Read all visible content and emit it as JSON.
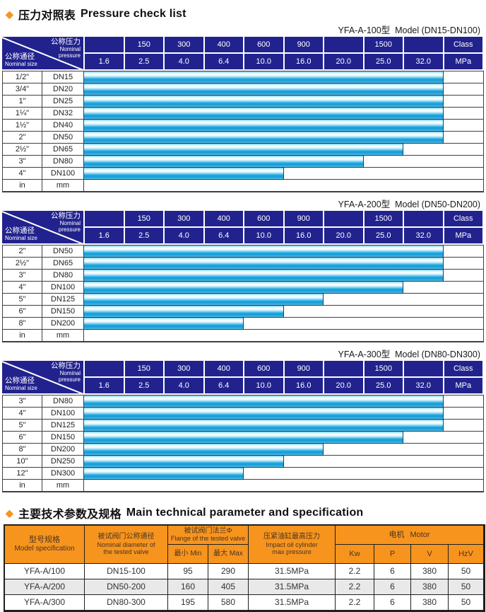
{
  "page": {
    "diamond_icon": "◆",
    "section1_title_zh": "压力对照表",
    "section1_title_en": "Pressure check list",
    "section2_title_zh": "主要技术参数及规格",
    "section2_title_en": "Main technical parameter and specification",
    "colors": {
      "header_navy": "#22228E",
      "accent_orange": "#F7941D",
      "bar_cyan": "#29ABE2"
    }
  },
  "pressure_header": {
    "diagonal": {
      "top_zh": "公称压力",
      "top_en1": "Nominal",
      "top_en2": "pressure",
      "bottom_zh": "公称通径",
      "bottom_en": "Nominal size"
    },
    "class_row": [
      "",
      "150",
      "300",
      "400",
      "600",
      "900",
      "",
      "1500",
      "",
      "Class"
    ],
    "mpa_row": [
      "1.6",
      "2.5",
      "4.0",
      "6.4",
      "10.0",
      "16.0",
      "20.0",
      "25.0",
      "32.0",
      "MPa"
    ],
    "footer": [
      "in",
      "mm"
    ]
  },
  "pressure_tables": [
    {
      "title": "YFA-A-100型  Model (DN15-DN100)",
      "rows": [
        {
          "inch": "1/2\"",
          "dn": "DN15",
          "max_mpa": "32.0"
        },
        {
          "inch": "3/4\"",
          "dn": "DN20",
          "max_mpa": "32.0"
        },
        {
          "inch": "1\"",
          "dn": "DN25",
          "max_mpa": "32.0"
        },
        {
          "inch": "1¼\"",
          "dn": "DN32",
          "max_mpa": "32.0"
        },
        {
          "inch": "1½\"",
          "dn": "DN40",
          "max_mpa": "32.0"
        },
        {
          "inch": "2\"",
          "dn": "DN50",
          "max_mpa": "32.0"
        },
        {
          "inch": "2½\"",
          "dn": "DN65",
          "max_mpa": "25.0"
        },
        {
          "inch": "3\"",
          "dn": "DN80",
          "max_mpa": "20.0"
        },
        {
          "inch": "4\"",
          "dn": "DN100",
          "max_mpa": "10.0"
        }
      ]
    },
    {
      "title": "YFA-A-200型  Model (DN50-DN200)",
      "rows": [
        {
          "inch": "2\"",
          "dn": "DN50",
          "max_mpa": "32.0"
        },
        {
          "inch": "2½\"",
          "dn": "DN65",
          "max_mpa": "32.0"
        },
        {
          "inch": "3\"",
          "dn": "DN80",
          "max_mpa": "32.0"
        },
        {
          "inch": "4\"",
          "dn": "DN100",
          "max_mpa": "25.0"
        },
        {
          "inch": "5\"",
          "dn": "DN125",
          "max_mpa": "16.0"
        },
        {
          "inch": "6\"",
          "dn": "DN150",
          "max_mpa": "10.0"
        },
        {
          "inch": "8\"",
          "dn": "DN200",
          "max_mpa": "6.4"
        }
      ]
    },
    {
      "title": "YFA-A-300型  Model (DN80-DN300)",
      "rows": [
        {
          "inch": "3\"",
          "dn": "DN80",
          "max_mpa": "32.0"
        },
        {
          "inch": "4\"",
          "dn": "DN100",
          "max_mpa": "32.0"
        },
        {
          "inch": "5\"",
          "dn": "DN125",
          "max_mpa": "32.0"
        },
        {
          "inch": "6\"",
          "dn": "DN150",
          "max_mpa": "25.0"
        },
        {
          "inch": "8\"",
          "dn": "DN200",
          "max_mpa": "16.0"
        },
        {
          "inch": "10\"",
          "dn": "DN250",
          "max_mpa": "10.0"
        },
        {
          "inch": "12\"",
          "dn": "DN300",
          "max_mpa": "6.4"
        }
      ]
    }
  ],
  "spec_table": {
    "header": {
      "model_zh": "型号规格",
      "model_en": "Model specification",
      "dn_zh": "被试阀门公称通径",
      "dn_en1": "Nominal diameter of",
      "dn_en2": "the tested valve",
      "flange_zh": "被试阀门法兰Φ",
      "flange_en": "Flange of the tested valve",
      "min_label": "最小 Min",
      "max_label": "最大 Max",
      "cyl_zh": "压紧油缸最高压力",
      "cyl_en1": "Impact oil cylinder",
      "cyl_en2": "max pressure",
      "motor_zh": "电机",
      "motor_en": "Motor",
      "motor_cols": [
        "Kw",
        "P",
        "V",
        "HzV"
      ]
    },
    "rows": [
      [
        "YFA-A/100",
        "DN15-100",
        "95",
        "290",
        "31.5MPa",
        "2.2",
        "6",
        "380",
        "50"
      ],
      [
        "YFA-A/200",
        "DN50-200",
        "160",
        "405",
        "31.5MPa",
        "2.2",
        "6",
        "380",
        "50"
      ],
      [
        "YFA-A/300",
        "DN80-300",
        "195",
        "580",
        "31.5MPa",
        "2.2",
        "6",
        "380",
        "50"
      ]
    ]
  }
}
